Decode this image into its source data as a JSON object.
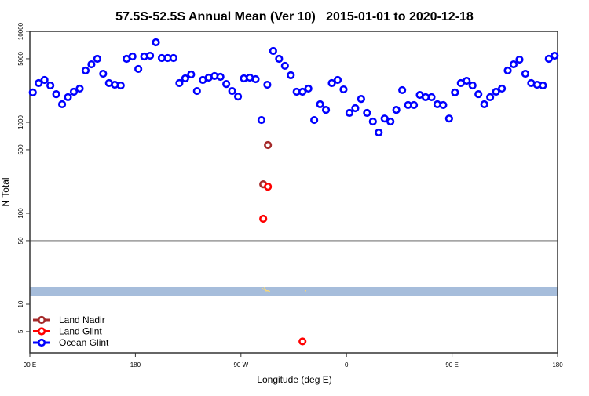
{
  "chart_data": {
    "type": "scatter",
    "title": "57.5S-52.5S Annual Mean (Ver 10)   2015-01-01 to 2020-12-18",
    "xlabel": "Longitude (deg E)",
    "ylabel": "N Total",
    "y_scale": "log",
    "ylim": [
      2.8,
      10000
    ],
    "xlim_lon": [
      90,
      180
    ],
    "x_wraps_around_globe": true,
    "x_ticks": [
      {
        "lon": 90,
        "label": "90 E"
      },
      {
        "lon": 180,
        "label": "180"
      },
      {
        "lon": -90,
        "label": "90 W"
      },
      {
        "lon": 0,
        "label": "0"
      },
      {
        "lon": 90,
        "label": "90 E"
      },
      {
        "lon": 180,
        "label": "180"
      }
    ],
    "y_ticks": [
      {
        "value": 10000,
        "label": "10000"
      },
      {
        "value": 5000,
        "label": "5000"
      },
      {
        "value": 1000,
        "label": "1000"
      },
      {
        "value": 500,
        "label": "500"
      },
      {
        "value": 100,
        "label": "100"
      },
      {
        "value": 50,
        "label": "50"
      },
      {
        "value": 10,
        "label": "10"
      },
      {
        "value": 5,
        "label": "5"
      }
    ],
    "reference_line": {
      "value": 50,
      "color": "#999999"
    },
    "band_color": "#a6bddb",
    "band_speck_color": "#f5d77a",
    "grid": false,
    "legend_position": "bottom-left",
    "series": [
      {
        "name": "Land Nadir",
        "color": "#a52a2a",
        "lon": [
          -67,
          -71
        ],
        "values": [
          562,
          208
        ]
      },
      {
        "name": "Land Glint",
        "color": "#ff0000",
        "lon": [
          -67,
          -71,
          -37.5
        ],
        "values": [
          196,
          87,
          3.9
        ]
      },
      {
        "name": "Ocean Glint",
        "color": "#0000ff",
        "lon": [
          92.5,
          97.5,
          102.5,
          107.5,
          112.5,
          117.5,
          122.5,
          127.5,
          132.5,
          137.5,
          142.5,
          147.5,
          152.5,
          157.5,
          162.5,
          167.5,
          172.5,
          177.5,
          -177.5,
          -172.5,
          -167.5,
          -162.5,
          -157.5,
          -152.5,
          -147.5,
          -142.5,
          -137.5,
          -132.5,
          -127.5,
          -122.5,
          -117.5,
          -112.5,
          -107.5,
          -102.5,
          -97.5,
          -92.5,
          -87.5,
          -82.5,
          -77.5,
          -72.5,
          -67.5,
          -62.5,
          -57.5,
          -52.5,
          -47.5,
          -42.5,
          -37.5,
          -32.5,
          -27.5,
          -22.5,
          -17.5,
          -12.5,
          -7.5,
          -2.5,
          2.5,
          7.5,
          12.5,
          17.5,
          22.5,
          27.5,
          32.5,
          37.5,
          42.5,
          47.5,
          52.5,
          57.5,
          62.5,
          67.5,
          72.5,
          77.5,
          82.5,
          87.5,
          92.5,
          97.5,
          102.5,
          107.5,
          112.5,
          117.5,
          122.5,
          127.5,
          132.5,
          137.5,
          142.5,
          147.5,
          152.5,
          157.5,
          162.5,
          167.5,
          172.5,
          177.5
        ],
        "values": [
          2130,
          2700,
          2920,
          2540,
          2040,
          1580,
          1890,
          2170,
          2350,
          3710,
          4340,
          4990,
          3420,
          2700,
          2590,
          2540,
          4990,
          5300,
          3860,
          5300,
          5400,
          7570,
          5090,
          5090,
          5090,
          2700,
          3040,
          3360,
          2210,
          2920,
          3100,
          3230,
          3160,
          2640,
          2210,
          1920,
          3040,
          3100,
          2980,
          1060,
          2590,
          6090,
          4990,
          4180,
          3290,
          2170,
          2170,
          2350,
          1060,
          1580,
          1370,
          2700,
          2920,
          2300,
          1270,
          1430,
          1810,
          1270,
          1020,
          773,
          1100,
          1020,
          1370,
          2260,
          1550,
          1550,
          2000,
          1890,
          1890,
          1580,
          1550,
          1100,
          2130,
          2700,
          2860,
          2540,
          2040,
          1580,
          1890,
          2170,
          2350,
          3710,
          4340,
          4890,
          3420,
          2700,
          2590,
          2540,
          4990,
          5400
        ]
      }
    ]
  }
}
